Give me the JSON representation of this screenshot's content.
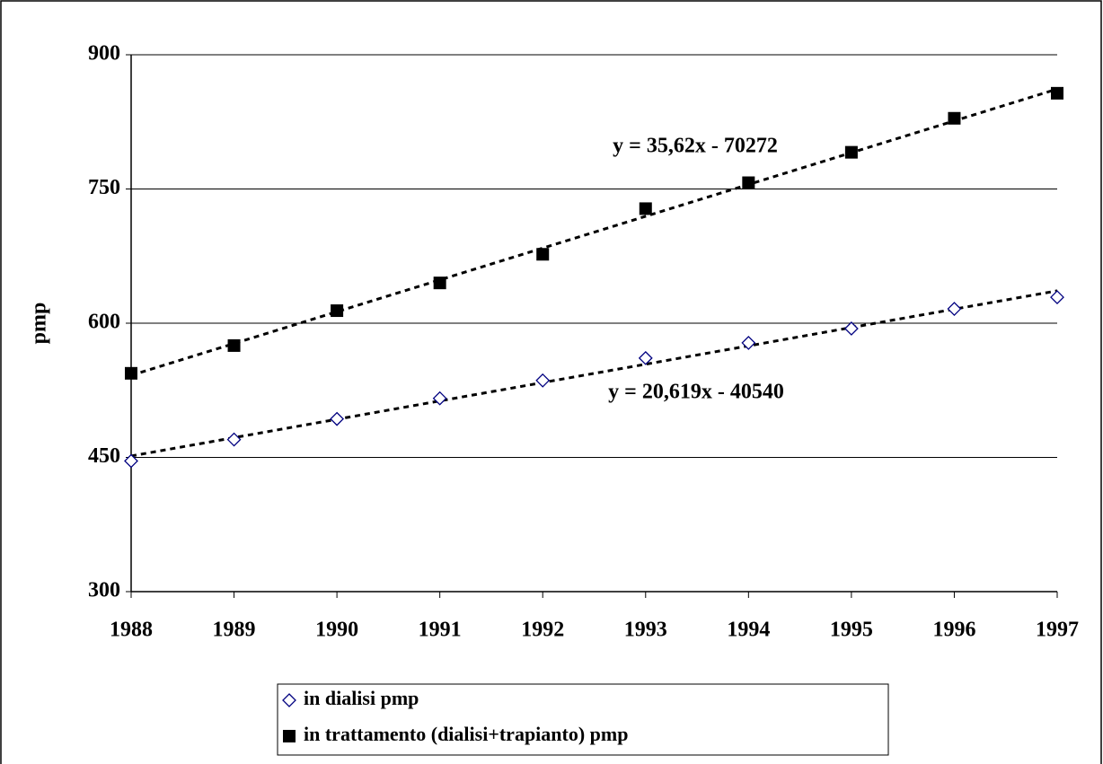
{
  "chart_data": {
    "type": "scatter",
    "y_label": "pmp",
    "x": [
      1988,
      1989,
      1990,
      1991,
      1992,
      1993,
      1994,
      1995,
      1996,
      1997
    ],
    "series": [
      {
        "name": "in dialisi pmp",
        "color": "#000080",
        "marker": "diamond",
        "values": [
          446,
          470,
          493,
          516,
          536,
          561,
          578,
          594,
          616,
          629
        ]
      },
      {
        "name": "in trattamento (dialisi+trapianto) pmp",
        "color": "#000000",
        "marker": "square",
        "values": [
          544,
          575,
          614,
          645,
          677,
          728,
          757,
          791,
          829,
          857
        ]
      }
    ],
    "trendline": true,
    "annotations": [
      "y = 35,62x - 70272",
      "y = 20,619x - 40540"
    ],
    "xlim": [
      1988,
      1997
    ],
    "xticks": [
      1988,
      1989,
      1990,
      1991,
      1992,
      1993,
      1994,
      1995,
      1996,
      1997
    ],
    "ylim": [
      300,
      900
    ],
    "yticks": [
      300,
      450,
      600,
      750,
      900
    ],
    "grid": true,
    "legend": "bottom"
  }
}
